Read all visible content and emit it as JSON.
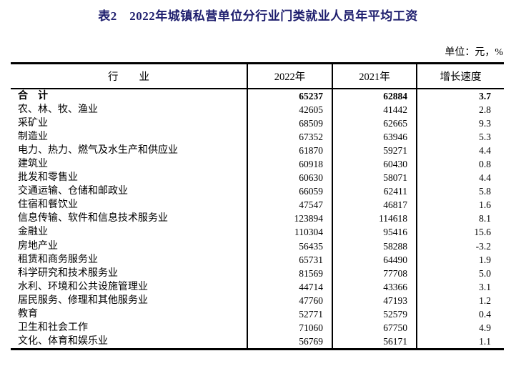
{
  "page": {
    "title": "表2　2022年城镇私营单位分行业门类就业人员年平均工资",
    "unit_label": "单位：元，%"
  },
  "colors": {
    "title_text": "#1e1e6e",
    "body_text": "#000000",
    "border": "#000000",
    "background": "#ffffff"
  },
  "table": {
    "headers": {
      "industry": "行　　业",
      "y2022": "2022年",
      "y2021": "2021年",
      "growth": "增长速度"
    },
    "rows": [
      {
        "industry": "合　计",
        "y2022": "65237",
        "y2021": "62884",
        "growth": "3.7"
      },
      {
        "industry": "农、林、牧、渔业",
        "y2022": "42605",
        "y2021": "41442",
        "growth": "2.8"
      },
      {
        "industry": "采矿业",
        "y2022": "68509",
        "y2021": "62665",
        "growth": "9.3"
      },
      {
        "industry": "制造业",
        "y2022": "67352",
        "y2021": "63946",
        "growth": "5.3"
      },
      {
        "industry": "电力、热力、燃气及水生产和供应业",
        "y2022": "61870",
        "y2021": "59271",
        "growth": "4.4"
      },
      {
        "industry": "建筑业",
        "y2022": "60918",
        "y2021": "60430",
        "growth": "0.8"
      },
      {
        "industry": "批发和零售业",
        "y2022": "60630",
        "y2021": "58071",
        "growth": "4.4"
      },
      {
        "industry": "交通运输、仓储和邮政业",
        "y2022": "66059",
        "y2021": "62411",
        "growth": "5.8"
      },
      {
        "industry": "住宿和餐饮业",
        "y2022": "47547",
        "y2021": "46817",
        "growth": "1.6"
      },
      {
        "industry": "信息传输、软件和信息技术服务业",
        "y2022": "123894",
        "y2021": "114618",
        "growth": "8.1"
      },
      {
        "industry": "金融业",
        "y2022": "110304",
        "y2021": "95416",
        "growth": "15.6"
      },
      {
        "industry": "房地产业",
        "y2022": "56435",
        "y2021": "58288",
        "growth": "-3.2"
      },
      {
        "industry": "租赁和商务服务业",
        "y2022": "65731",
        "y2021": "64490",
        "growth": "1.9"
      },
      {
        "industry": "科学研究和技术服务业",
        "y2022": "81569",
        "y2021": "77708",
        "growth": "5.0"
      },
      {
        "industry": "水利、环境和公共设施管理业",
        "y2022": "44714",
        "y2021": "43366",
        "growth": "3.1"
      },
      {
        "industry": "居民服务、修理和其他服务业",
        "y2022": "47760",
        "y2021": "47193",
        "growth": "1.2"
      },
      {
        "industry": "教育",
        "y2022": "52771",
        "y2021": "52579",
        "growth": "0.4"
      },
      {
        "industry": "卫生和社会工作",
        "y2022": "71060",
        "y2021": "67750",
        "growth": "4.9"
      },
      {
        "industry": "文化、体育和娱乐业",
        "y2022": "56769",
        "y2021": "56171",
        "growth": "1.1"
      }
    ]
  }
}
